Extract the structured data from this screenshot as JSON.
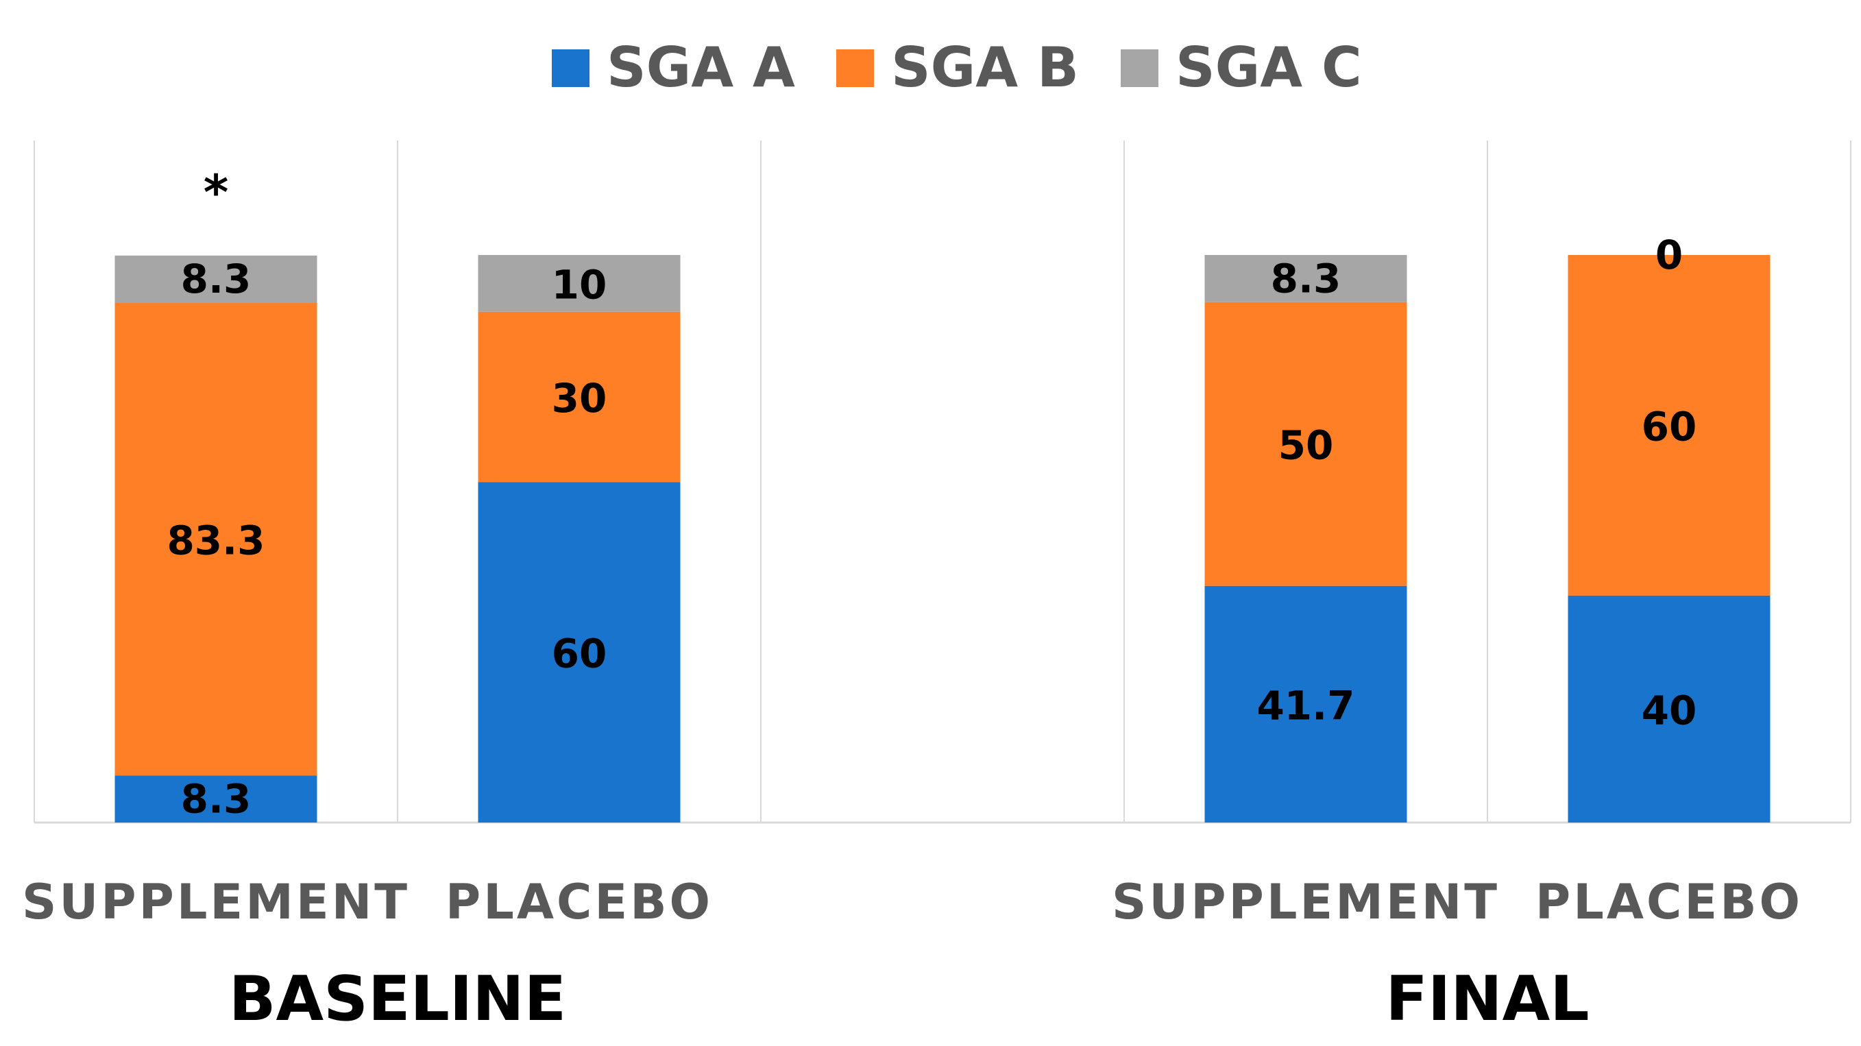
{
  "chart_data": {
    "type": "bar",
    "stacked": true,
    "percent_stacked": true,
    "title": "",
    "xlabel": "",
    "ylabel": "",
    "ylim": [
      0,
      100
    ],
    "grid": "vertical separators between categories",
    "legend_position": "top-center",
    "groups": [
      {
        "label": "BASELINE",
        "categories": [
          "SUPPLEMENT",
          "PLACEBO"
        ]
      },
      {
        "label": "FINAL",
        "categories": [
          "SUPPLEMENT",
          "PLACEBO"
        ]
      }
    ],
    "categories": [
      "SUPPLEMENT",
      "PLACEBO",
      "",
      "SUPPLEMENT",
      "PLACEBO"
    ],
    "series": [
      {
        "name": "SGA A",
        "color": "#1874CD",
        "values": [
          8.3,
          60,
          null,
          41.7,
          40
        ]
      },
      {
        "name": "SGA B",
        "color": "#FF7F27",
        "values": [
          83.3,
          30,
          null,
          50,
          60
        ]
      },
      {
        "name": "SGA C",
        "color": "#A6A6A6",
        "values": [
          8.3,
          10,
          null,
          8.3,
          0
        ]
      }
    ],
    "annotations": [
      {
        "category_index": 0,
        "text": "*",
        "meaning": "significance marker"
      }
    ]
  }
}
